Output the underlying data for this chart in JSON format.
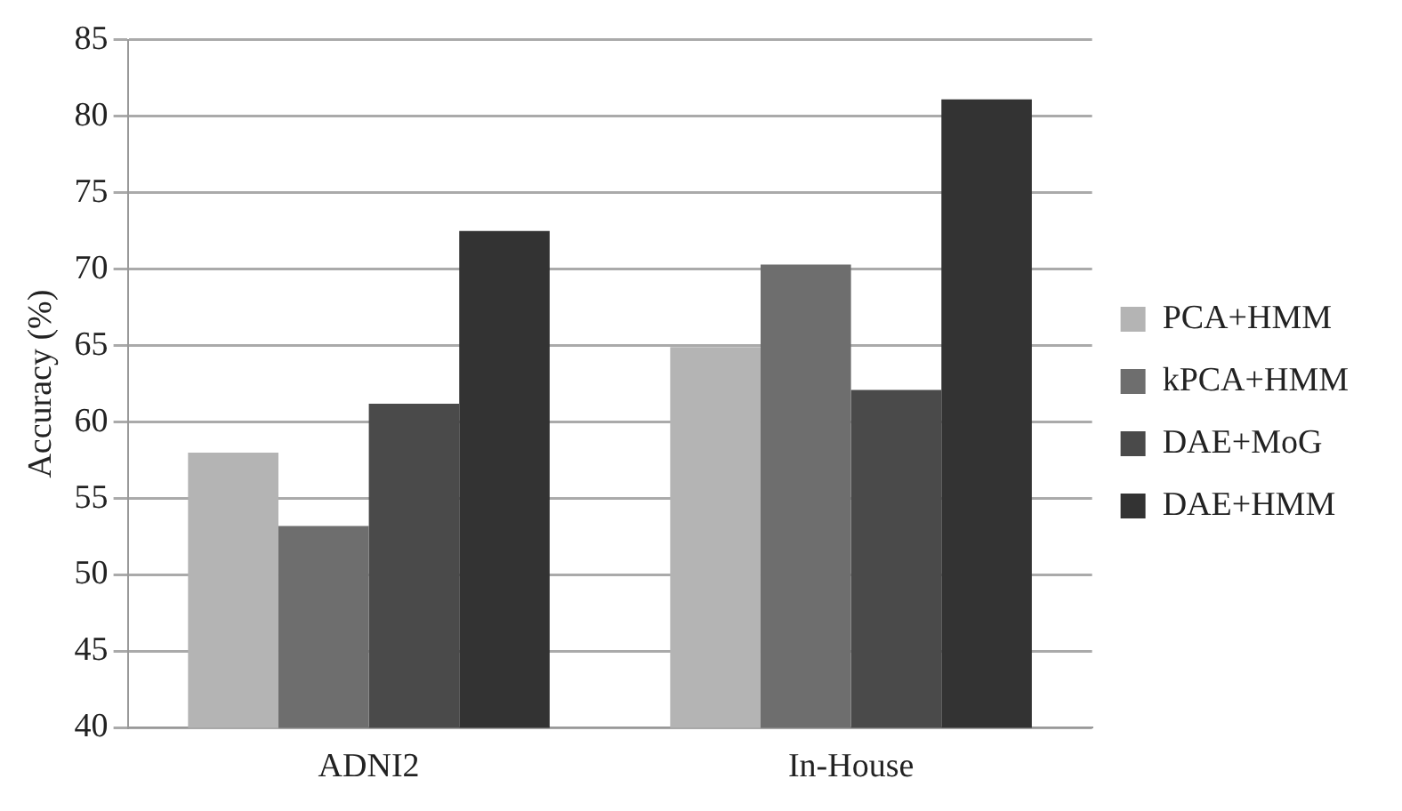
{
  "chart_data": {
    "type": "bar",
    "ylabel": "Accuracy (%)",
    "categories": [
      "ADNI2",
      "In-House"
    ],
    "series": [
      {
        "name": "PCA+HMM",
        "color": "#b4b4b4",
        "values": [
          58,
          64.9
        ]
      },
      {
        "name": "kPCA+HMM",
        "color": "#6e6e6e",
        "values": [
          53.2,
          70.3
        ]
      },
      {
        "name": "DAE+MoG",
        "color": "#4a4a4a",
        "values": [
          61.2,
          62.1
        ]
      },
      {
        "name": "DAE+HMM",
        "color": "#333333",
        "values": [
          72.5,
          81.1
        ]
      }
    ],
    "ylim": [
      40,
      85
    ],
    "yticks": [
      40,
      45,
      50,
      55,
      60,
      65,
      70,
      75,
      80,
      85
    ],
    "grid": "y",
    "legend": "right"
  }
}
